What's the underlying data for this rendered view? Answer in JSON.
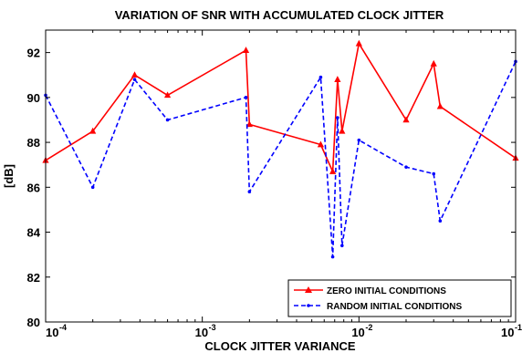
{
  "chart_data": {
    "type": "line",
    "title": "VARIATION OF SNR WITH ACCUMULATED CLOCK JITTER",
    "xlabel": "CLOCK JITTER VARIANCE",
    "ylabel": "[dB]",
    "xscale": "log",
    "xlim": [
      0.0001,
      0.1
    ],
    "ylim": [
      80,
      93
    ],
    "grid": false,
    "legend_position": "bottom-right",
    "xticks": [
      {
        "base": "10",
        "exp": "-4",
        "value": 0.0001
      },
      {
        "base": "10",
        "exp": "-3",
        "value": 0.001
      },
      {
        "base": "10",
        "exp": "-2",
        "value": 0.01
      },
      {
        "base": "10",
        "exp": "-1",
        "value": 0.1
      }
    ],
    "yticks": [
      "80",
      "82",
      "84",
      "86",
      "88",
      "90",
      "92"
    ],
    "series": [
      {
        "name": "ZERO INITIAL CONDITIONS",
        "color": "#ff0000",
        "dash": "solid",
        "marker": "triangle",
        "x": [
          0.0001,
          0.0002,
          0.00037,
          0.0006,
          0.0019,
          0.002,
          0.0057,
          0.0068,
          0.0073,
          0.0078,
          0.01,
          0.02,
          0.03,
          0.033,
          0.1
        ],
        "y": [
          87.2,
          88.5,
          91.0,
          90.1,
          92.1,
          88.8,
          87.9,
          86.7,
          90.8,
          88.5,
          92.4,
          89.0,
          91.5,
          89.6,
          87.3
        ]
      },
      {
        "name": "RANDOM INITIAL CONDITIONS",
        "color": "#0000ff",
        "dash": "dashed",
        "marker": "dot",
        "x": [
          0.0001,
          0.0002,
          0.00037,
          0.0006,
          0.0019,
          0.002,
          0.0057,
          0.0068,
          0.0073,
          0.0078,
          0.01,
          0.02,
          0.03,
          0.033,
          0.1
        ],
        "y": [
          90.1,
          86.0,
          90.8,
          89.0,
          90.0,
          85.8,
          90.9,
          82.9,
          89.1,
          83.4,
          88.1,
          86.9,
          86.6,
          84.5,
          91.6
        ]
      }
    ]
  }
}
